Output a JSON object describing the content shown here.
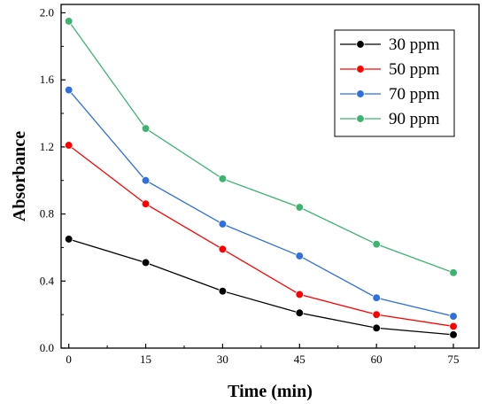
{
  "chart_data": {
    "type": "line",
    "title": "",
    "xlabel": "Time (min)",
    "ylabel": "Absorbance",
    "x": [
      0,
      15,
      30,
      45,
      60,
      75
    ],
    "x_ticks": [
      "0",
      "15",
      "30",
      "45",
      "60",
      "75"
    ],
    "xlim": [
      -1.5,
      80
    ],
    "y_ticks": [
      "0.0",
      "0.4",
      "0.8",
      "1.2",
      "1.6",
      "2.0"
    ],
    "ylim": [
      0,
      2.05
    ],
    "grid": false,
    "legend_position": "top-right",
    "series": [
      {
        "name": "30 ppm",
        "color": "#000000",
        "values": [
          0.65,
          0.51,
          0.34,
          0.21,
          0.12,
          0.08
        ]
      },
      {
        "name": "50 ppm",
        "color": "#ff0000",
        "values": [
          1.21,
          0.86,
          0.59,
          0.32,
          0.2,
          0.13
        ]
      },
      {
        "name": "70 ppm",
        "color": "#2f6fdf",
        "values": [
          1.54,
          1.0,
          0.74,
          0.55,
          0.3,
          0.19
        ]
      },
      {
        "name": "90 ppm",
        "color": "#3cb371",
        "values": [
          1.95,
          1.31,
          1.01,
          0.84,
          0.62,
          0.45
        ]
      }
    ]
  }
}
